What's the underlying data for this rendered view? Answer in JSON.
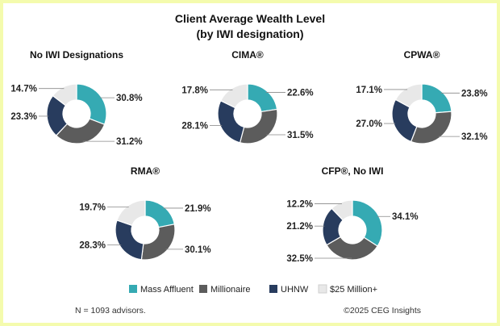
{
  "chart_data": {
    "type": "pie",
    "title": "Client Average Wealth Level",
    "subtitle": "(by IWI designation)",
    "categories": [
      "Mass Affluent",
      "Millionaire",
      "UHNW",
      "$25 Million+"
    ],
    "colors": [
      "#35aab3",
      "#5c5c5c",
      "#283c5e",
      "#e8e8e8"
    ],
    "panels": [
      {
        "name": "No IWI Designations",
        "values": [
          30.8,
          31.2,
          23.3,
          14.7
        ],
        "labels": [
          "30.8%",
          "31.2%",
          "23.3%",
          "14.7%"
        ]
      },
      {
        "name": "CIMA®",
        "values": [
          22.6,
          31.5,
          28.1,
          17.8
        ],
        "labels": [
          "22.6%",
          "31.5%",
          "28.1%",
          "17.8%"
        ]
      },
      {
        "name": "CPWA®",
        "values": [
          23.8,
          32.1,
          27.0,
          17.1
        ],
        "labels": [
          "23.8%",
          "32.1%",
          "27.0%",
          "17.1%"
        ]
      },
      {
        "name": "RMA®",
        "values": [
          21.9,
          30.1,
          28.3,
          19.7
        ],
        "labels": [
          "21.9%",
          "30.1%",
          "28.3%",
          "19.7%"
        ]
      },
      {
        "name": "CFP®, No IWI",
        "values": [
          34.1,
          32.5,
          21.2,
          12.2
        ],
        "labels": [
          "34.1%",
          "32.5%",
          "21.2%",
          "12.2%"
        ]
      }
    ],
    "legend": [
      "Mass Affluent",
      "Millionaire",
      "UHNW",
      "$25 Million+"
    ],
    "footnote_left": "N = 1093 advisors.",
    "footnote_right": "©2025 CEG Insights"
  }
}
